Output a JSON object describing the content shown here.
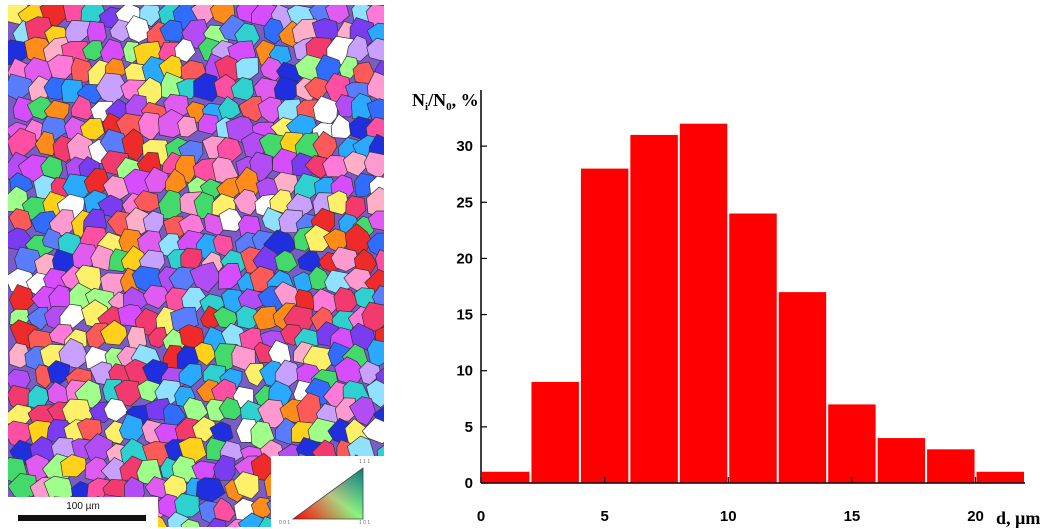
{
  "micrograph": {
    "scale_label": "100 µm",
    "ipf_key": {
      "corner_001": "0 0 1",
      "corner_101": "1 0 1",
      "corner_111": "1 1 1"
    }
  },
  "chart_data": {
    "type": "bar",
    "ylabel": "N",
    "ylabel_sub1": "i",
    "ylabel_sep": "/N",
    "ylabel_sub2": "0",
    "ylabel_unit": ", %",
    "xlabel": "d, µm",
    "bin_width": 2,
    "x": [
      1,
      3,
      5,
      7,
      9,
      11,
      13,
      15,
      17,
      19,
      21
    ],
    "values": [
      1,
      9,
      28,
      31,
      32,
      24,
      17,
      7,
      4,
      3,
      1
    ],
    "xlim": [
      0,
      22
    ],
    "ylim": [
      0,
      35
    ],
    "xticks": [
      0,
      5,
      10,
      15,
      20
    ],
    "yticks": [
      0,
      5,
      10,
      15,
      20,
      25,
      30
    ],
    "bar_color": "#ff0000",
    "grid": false
  }
}
